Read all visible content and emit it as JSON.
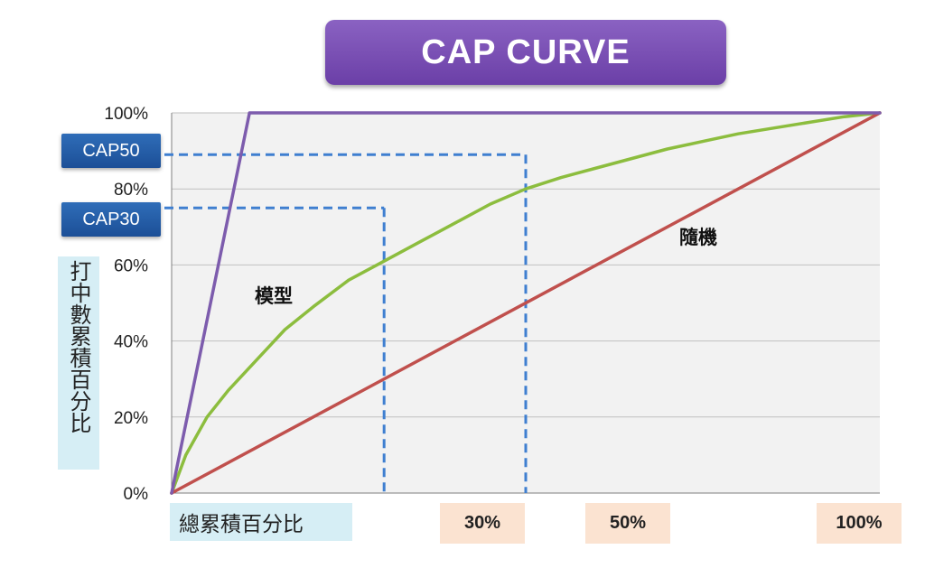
{
  "title": "CAP CURVE",
  "chart_data": {
    "type": "line",
    "title": "CAP CURVE",
    "xlabel": "總累積百分比",
    "ylabel": "打中數累積百分比",
    "xlim": [
      0,
      100
    ],
    "ylim": [
      0,
      100
    ],
    "grid": true,
    "y_ticks": [
      "0%",
      "20%",
      "40%",
      "60%",
      "80%",
      "100%"
    ],
    "x_ticks": [
      "30%",
      "50%",
      "100%"
    ],
    "series": [
      {
        "name": "模型",
        "color": "#8cbd3e",
        "x": [
          0,
          2,
          5,
          8,
          12,
          16,
          20,
          25,
          30,
          35,
          40,
          45,
          50,
          55,
          60,
          65,
          70,
          75,
          80,
          85,
          90,
          95,
          100
        ],
        "y": [
          0,
          10,
          20,
          27,
          35,
          43,
          49,
          56,
          61,
          66,
          71,
          76,
          80,
          83,
          85.5,
          88,
          90.5,
          92.5,
          94.5,
          96,
          97.5,
          99,
          100
        ]
      },
      {
        "name": "隨機",
        "color": "#c0504d",
        "x": [
          0,
          100
        ],
        "y": [
          0,
          100
        ]
      },
      {
        "name": "",
        "color": "#7d5cad",
        "x": [
          0,
          11,
          100
        ],
        "y": [
          0,
          100,
          100
        ]
      }
    ],
    "annotations": [
      {
        "label": "CAP50",
        "x": 50,
        "y": 89
      },
      {
        "label": "CAP30",
        "x": 30,
        "y": 75
      }
    ]
  }
}
